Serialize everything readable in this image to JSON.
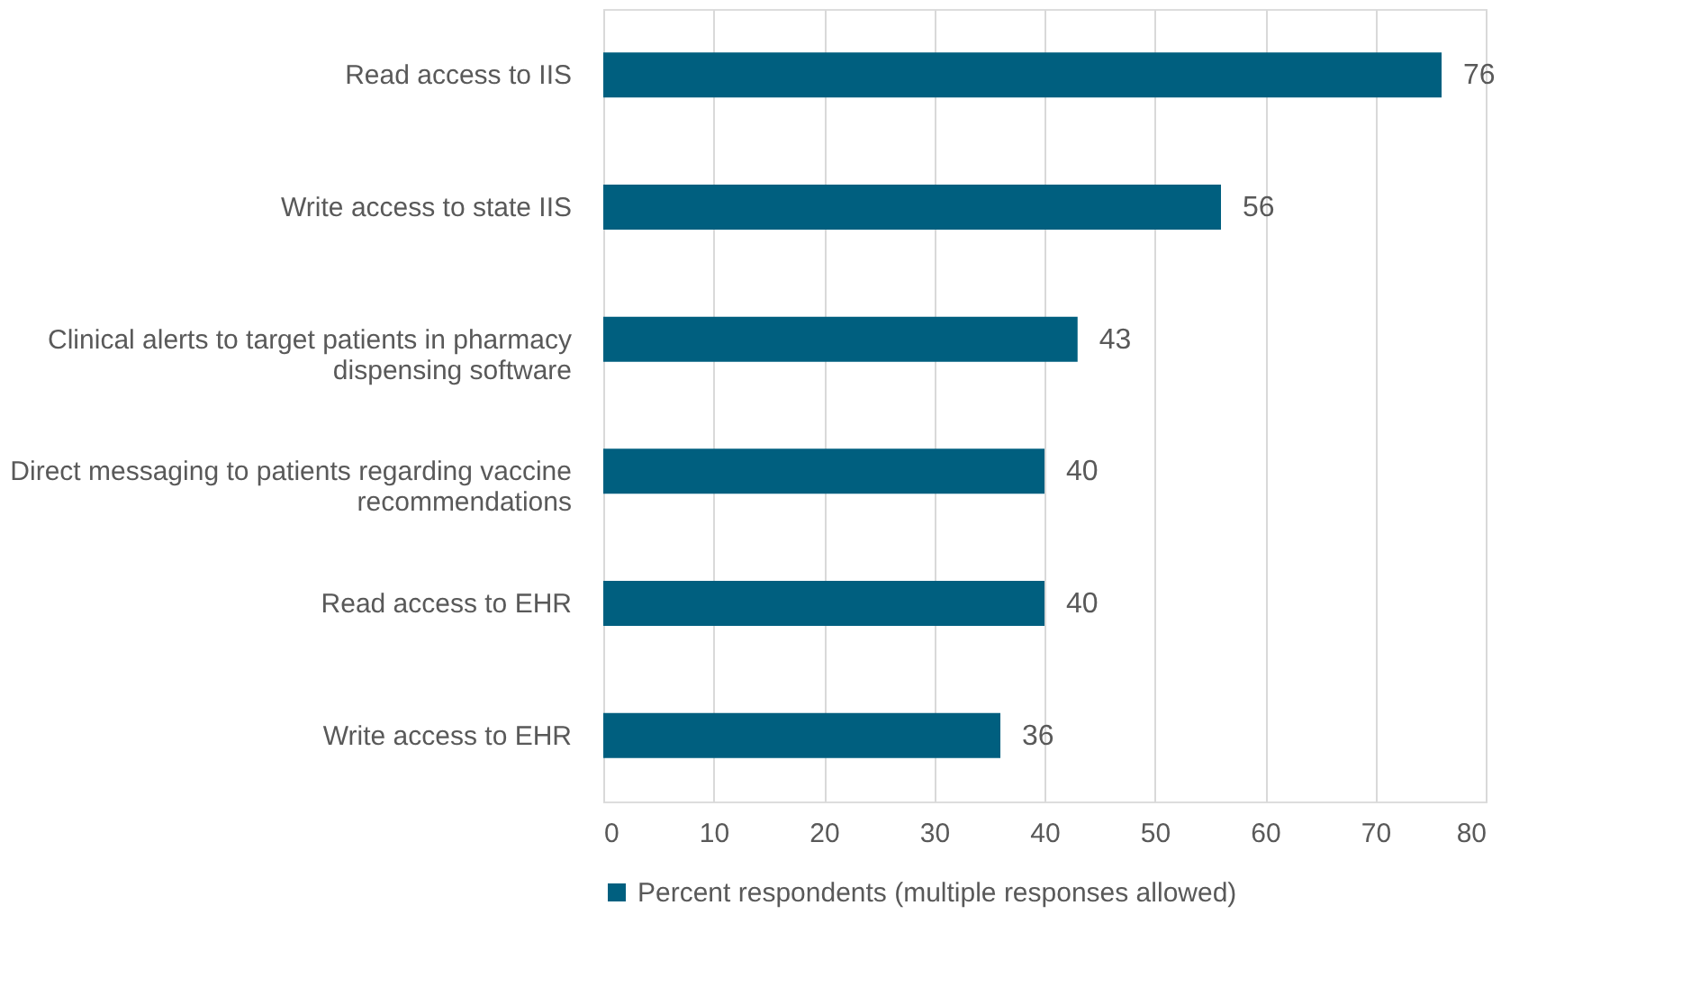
{
  "chart_data": {
    "type": "bar",
    "orientation": "horizontal",
    "categories": [
      "Read access to IIS",
      "Write access to state IIS",
      "Clinical alerts to target patients in pharmacy dispensing software",
      "Direct messaging to patients regarding vaccine recommendations",
      "Read access to EHR",
      "Write access to EHR"
    ],
    "series": [
      {
        "name": "Percent respondents (multiple responses allowed)",
        "color": "#005f7f",
        "values": [
          76,
          56,
          43,
          40,
          40,
          36
        ]
      }
    ],
    "xlim": [
      0,
      80
    ],
    "xticks": [
      0,
      10,
      20,
      30,
      40,
      50,
      60,
      70,
      80
    ],
    "grid": "x",
    "legend": "bottom",
    "data_labels": true
  }
}
